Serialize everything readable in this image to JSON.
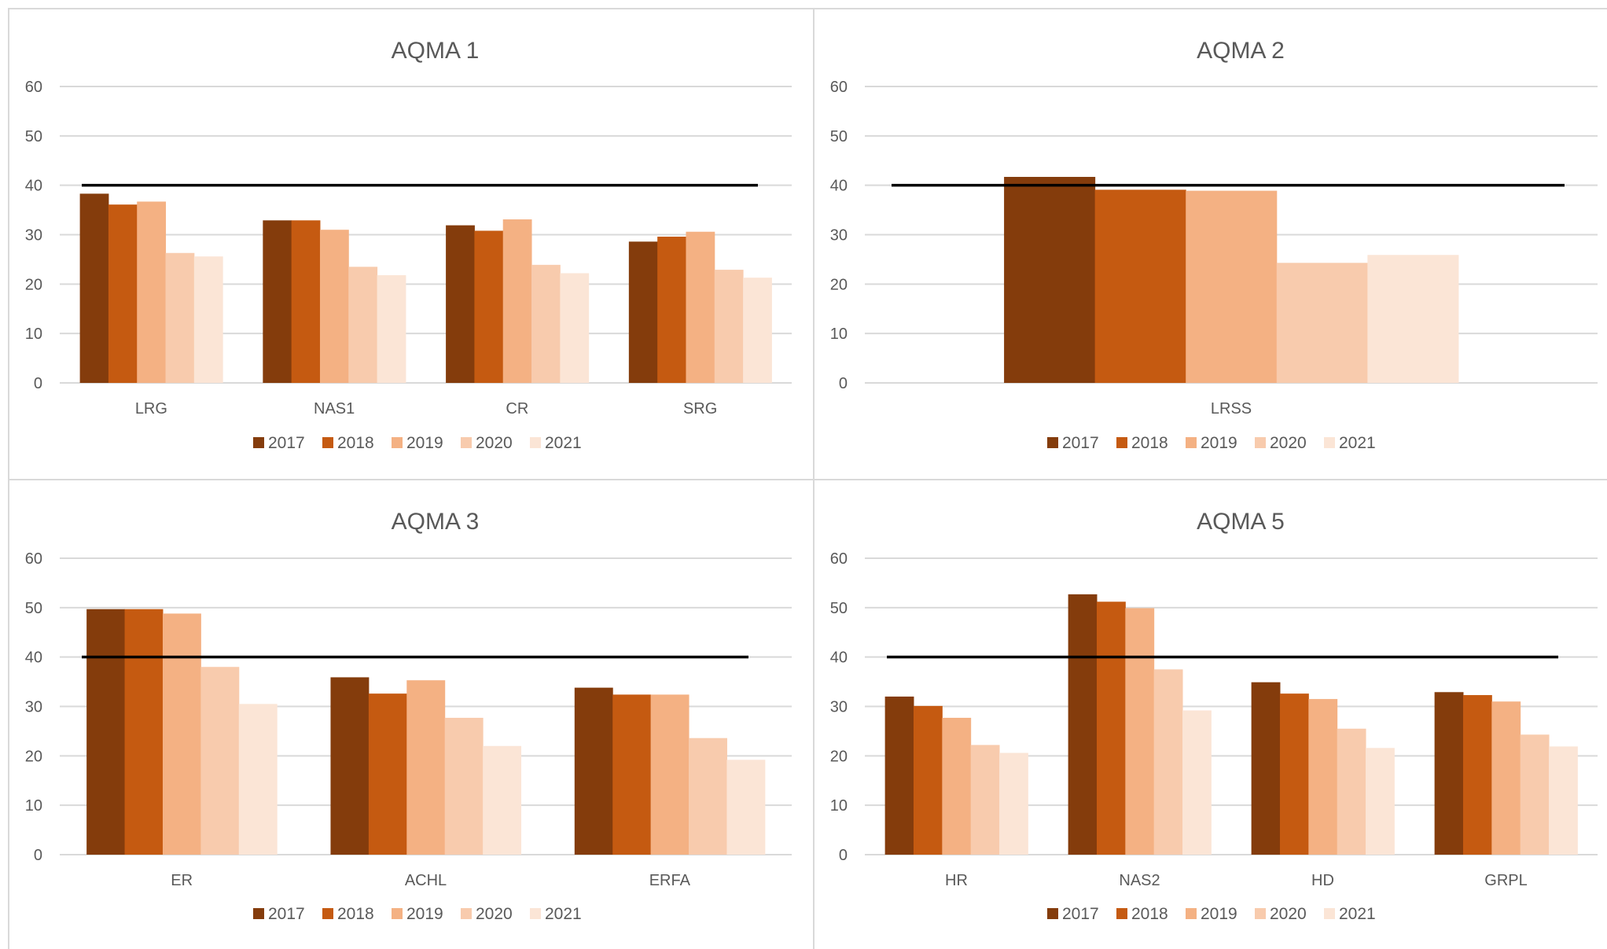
{
  "years": [
    "2017",
    "2018",
    "2019",
    "2020",
    "2021"
  ],
  "colors": [
    "#843c0c",
    "#c55a11",
    "#f4b183",
    "#f8cbad",
    "#fbe5d6"
  ],
  "line_color": "#000000",
  "chart_data": [
    {
      "type": "bar",
      "title": "AQMA 1",
      "categories": [
        "LRG",
        "NAS1",
        "CR",
        "SRG"
      ],
      "series": [
        {
          "name": "2017",
          "values": [
            38.3,
            32.9,
            31.9,
            28.6
          ]
        },
        {
          "name": "2018",
          "values": [
            36.1,
            32.9,
            30.8,
            29.6
          ]
        },
        {
          "name": "2019",
          "values": [
            36.7,
            31.0,
            33.1,
            30.6
          ]
        },
        {
          "name": "2020",
          "values": [
            26.3,
            23.5,
            23.9,
            22.9
          ]
        },
        {
          "name": "2021",
          "values": [
            25.6,
            21.8,
            22.2,
            21.3
          ]
        }
      ],
      "ylim": [
        0,
        60
      ],
      "yticks": [
        "0",
        "10",
        "20",
        "30",
        "40",
        "50",
        "60"
      ],
      "limit_line": 40,
      "grid": true,
      "legend": "bottom"
    },
    {
      "type": "bar",
      "title": "AQMA 2",
      "categories": [
        "LRSS"
      ],
      "series": [
        {
          "name": "2017",
          "values": [
            41.7
          ]
        },
        {
          "name": "2018",
          "values": [
            39.1
          ]
        },
        {
          "name": "2019",
          "values": [
            38.9
          ]
        },
        {
          "name": "2020",
          "values": [
            24.3
          ]
        },
        {
          "name": "2021",
          "values": [
            25.9
          ]
        }
      ],
      "ylim": [
        0,
        60
      ],
      "yticks": [
        "0",
        "10",
        "20",
        "30",
        "40",
        "50",
        "60"
      ],
      "limit_line": 40,
      "grid": true,
      "legend": "bottom"
    },
    {
      "type": "bar",
      "title": "AQMA 3",
      "categories": [
        "ER",
        "ACHL",
        "ERFA"
      ],
      "series": [
        {
          "name": "2017",
          "values": [
            49.7,
            35.9,
            33.8
          ]
        },
        {
          "name": "2018",
          "values": [
            49.7,
            32.6,
            32.4
          ]
        },
        {
          "name": "2019",
          "values": [
            48.8,
            35.3,
            32.4
          ]
        },
        {
          "name": "2020",
          "values": [
            38.0,
            27.7,
            23.6
          ]
        },
        {
          "name": "2021",
          "values": [
            30.5,
            22.0,
            19.2
          ]
        }
      ],
      "ylim": [
        0,
        60
      ],
      "yticks": [
        "0",
        "10",
        "20",
        "30",
        "40",
        "50",
        "60"
      ],
      "limit_line": 40,
      "grid": true,
      "legend": "bottom"
    },
    {
      "type": "bar",
      "title": "AQMA 5",
      "categories": [
        "HR",
        "NAS2",
        "HD",
        "GRPL"
      ],
      "series": [
        {
          "name": "2017",
          "values": [
            32.0,
            52.7,
            34.9,
            32.9
          ]
        },
        {
          "name": "2018",
          "values": [
            30.1,
            51.2,
            32.6,
            32.3
          ]
        },
        {
          "name": "2019",
          "values": [
            27.7,
            49.9,
            31.5,
            31.0
          ]
        },
        {
          "name": "2020",
          "values": [
            22.2,
            37.5,
            25.5,
            24.3
          ]
        },
        {
          "name": "2021",
          "values": [
            20.6,
            29.2,
            21.6,
            21.9
          ]
        }
      ],
      "ylim": [
        0,
        60
      ],
      "yticks": [
        "0",
        "10",
        "20",
        "30",
        "40",
        "50",
        "60"
      ],
      "limit_line": 40,
      "grid": true,
      "legend": "bottom"
    }
  ]
}
